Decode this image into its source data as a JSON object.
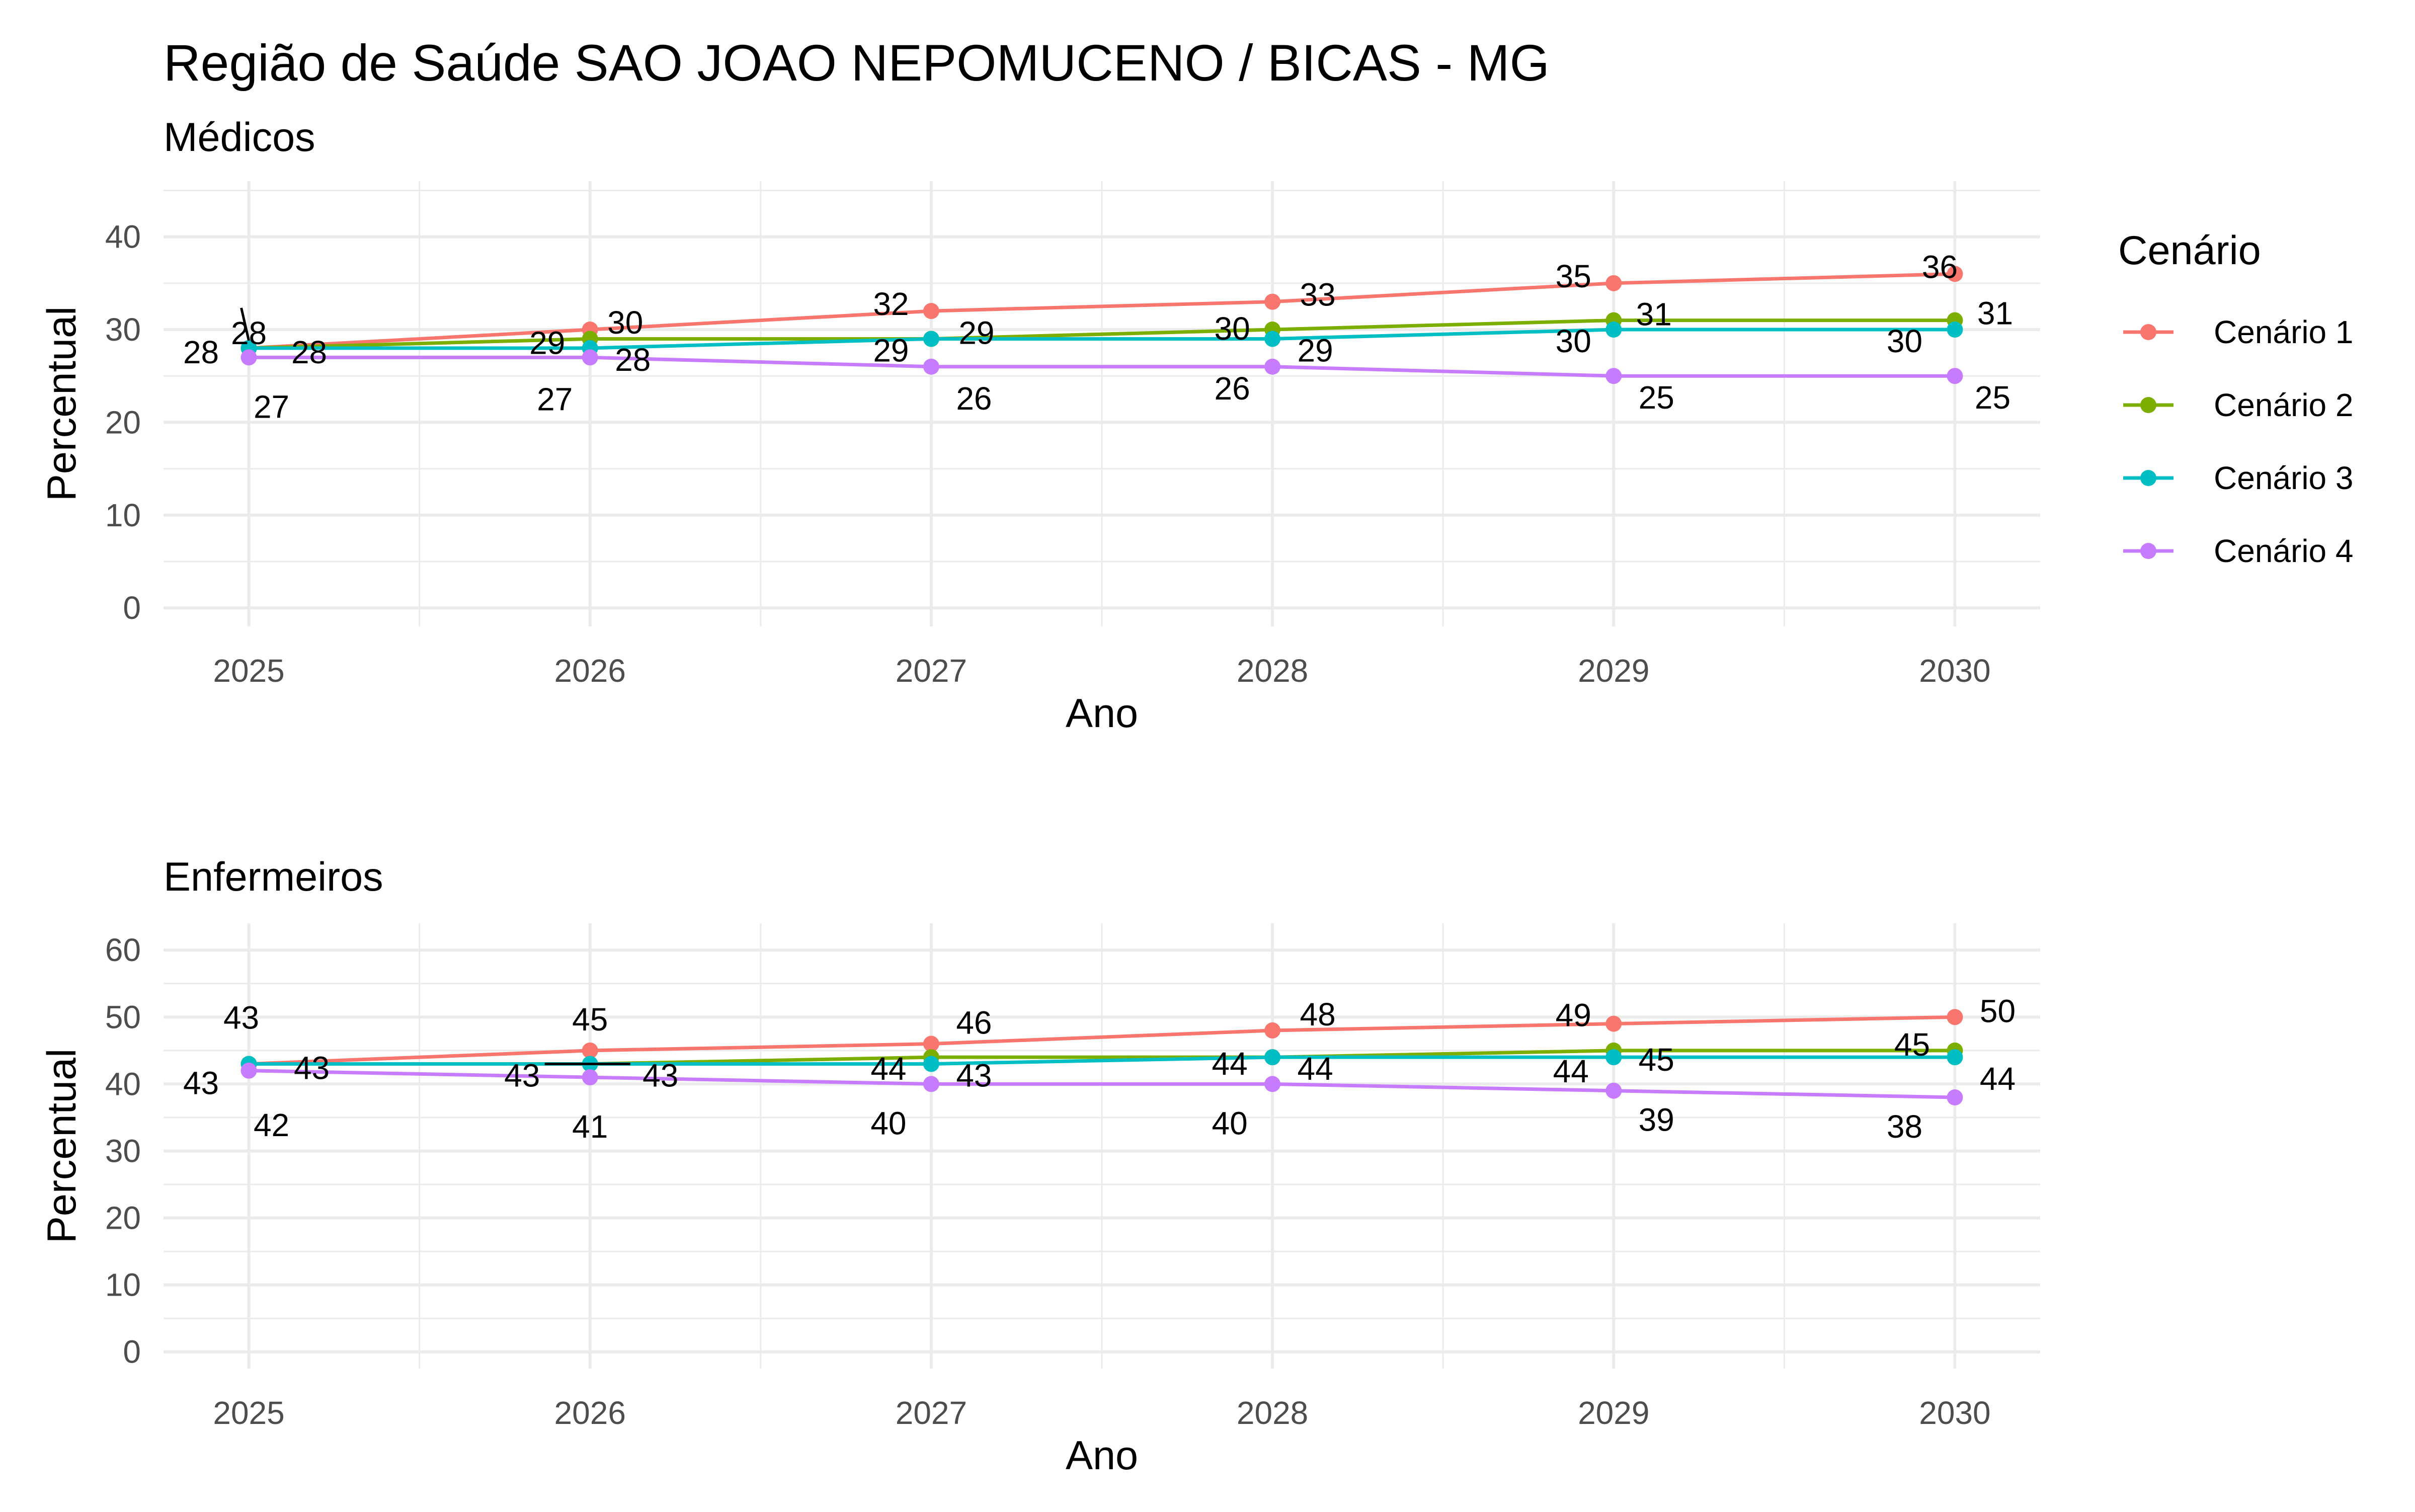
{
  "title": "Região de Saúde SAO JOAO NEPOMUCENO / BICAS - MG",
  "colors": {
    "Cenário 1": "#F8766D",
    "Cenário 2": "#7CAE00",
    "Cenário 3": "#00BFC4",
    "Cenário 4": "#C77CFF"
  },
  "legend": {
    "title": "Cenário",
    "entries": [
      "Cenário 1",
      "Cenário 2",
      "Cenário 3",
      "Cenário 4"
    ]
  },
  "chart_data": [
    {
      "type": "line",
      "subtitle": "Médicos",
      "xlabel": "Ano",
      "ylabel": "Percentual",
      "x": [
        2025,
        2026,
        2027,
        2028,
        2029,
        2030
      ],
      "xticks": [
        "2025",
        "2026",
        "2027",
        "2028",
        "2029",
        "2030"
      ],
      "yticks": [
        "0",
        "10",
        "20",
        "30",
        "40"
      ],
      "ylim": [
        -2,
        46
      ],
      "xlim": [
        2024.75,
        2030.25
      ],
      "grid": true,
      "legend_position": "right",
      "series": [
        {
          "name": "Cenário 1",
          "values": [
            28,
            30,
            32,
            33,
            35,
            36
          ]
        },
        {
          "name": "Cenário 2",
          "values": [
            28,
            29,
            29,
            30,
            31,
            31
          ]
        },
        {
          "name": "Cenário 3",
          "values": [
            28,
            28,
            29,
            29,
            30,
            30
          ]
        },
        {
          "name": "Cenário 4",
          "values": [
            27,
            27,
            26,
            26,
            25,
            25
          ]
        }
      ],
      "labels": [
        {
          "text": "28",
          "x": 2025,
          "y": 28
        },
        {
          "text": "30",
          "x": 2026,
          "y": 30
        },
        {
          "text": "32",
          "x": 2027,
          "y": 32
        },
        {
          "text": "33",
          "x": 2028,
          "y": 33
        },
        {
          "text": "35",
          "x": 2029,
          "y": 35
        },
        {
          "text": "36",
          "x": 2030,
          "y": 36
        },
        {
          "text": "28",
          "x": 2025,
          "y": 28
        },
        {
          "text": "29",
          "x": 2026,
          "y": 29
        },
        {
          "text": "29",
          "x": 2027,
          "y": 29
        },
        {
          "text": "30",
          "x": 2028,
          "y": 30
        },
        {
          "text": "31",
          "x": 2029,
          "y": 31
        },
        {
          "text": "31",
          "x": 2030,
          "y": 31
        },
        {
          "text": "28",
          "x": 2025,
          "y": 28
        },
        {
          "text": "28",
          "x": 2026,
          "y": 28
        },
        {
          "text": "29",
          "x": 2027,
          "y": 29
        },
        {
          "text": "29",
          "x": 2028,
          "y": 29
        },
        {
          "text": "30",
          "x": 2029,
          "y": 30
        },
        {
          "text": "30",
          "x": 2030,
          "y": 30
        },
        {
          "text": "27",
          "x": 2025,
          "y": 27
        },
        {
          "text": "27",
          "x": 2026,
          "y": 27
        },
        {
          "text": "26",
          "x": 2027,
          "y": 26
        },
        {
          "text": "26",
          "x": 2028,
          "y": 26
        },
        {
          "text": "25",
          "x": 2029,
          "y": 25
        },
        {
          "text": "25",
          "x": 2030,
          "y": 25
        }
      ]
    },
    {
      "type": "line",
      "subtitle": "Enfermeiros",
      "xlabel": "Ano",
      "ylabel": "Percentual",
      "x": [
        2025,
        2026,
        2027,
        2028,
        2029,
        2030
      ],
      "xticks": [
        "2025",
        "2026",
        "2027",
        "2028",
        "2029",
        "2030"
      ],
      "yticks": [
        "0",
        "10",
        "20",
        "30",
        "40",
        "50",
        "60"
      ],
      "ylim": [
        -2.5,
        64
      ],
      "xlim": [
        2024.75,
        2030.25
      ],
      "grid": true,
      "legend_position": "right",
      "series": [
        {
          "name": "Cenário 1",
          "values": [
            43,
            45,
            46,
            48,
            49,
            50
          ]
        },
        {
          "name": "Cenário 2",
          "values": [
            43,
            43,
            44,
            44,
            45,
            45
          ]
        },
        {
          "name": "Cenário 3",
          "values": [
            43,
            43,
            43,
            44,
            44,
            44
          ]
        },
        {
          "name": "Cenário 4",
          "values": [
            42,
            41,
            40,
            40,
            39,
            38
          ]
        }
      ],
      "labels": [
        {
          "text": "43",
          "x": 2025,
          "y": 43
        },
        {
          "text": "45",
          "x": 2026,
          "y": 45
        },
        {
          "text": "46",
          "x": 2027,
          "y": 46
        },
        {
          "text": "48",
          "x": 2028,
          "y": 48
        },
        {
          "text": "49",
          "x": 2029,
          "y": 49
        },
        {
          "text": "50",
          "x": 2030,
          "y": 50
        },
        {
          "text": "43",
          "x": 2025,
          "y": 43
        },
        {
          "text": "43",
          "x": 2026,
          "y": 43
        },
        {
          "text": "44",
          "x": 2027,
          "y": 44
        },
        {
          "text": "44",
          "x": 2028,
          "y": 44
        },
        {
          "text": "45",
          "x": 2029,
          "y": 45
        },
        {
          "text": "45",
          "x": 2030,
          "y": 45
        },
        {
          "text": "43",
          "x": 2025,
          "y": 43
        },
        {
          "text": "43",
          "x": 2026,
          "y": 43
        },
        {
          "text": "43",
          "x": 2027,
          "y": 43
        },
        {
          "text": "44",
          "x": 2028,
          "y": 44
        },
        {
          "text": "44",
          "x": 2029,
          "y": 44
        },
        {
          "text": "44",
          "x": 2030,
          "y": 44
        },
        {
          "text": "42",
          "x": 2025,
          "y": 42
        },
        {
          "text": "41",
          "x": 2026,
          "y": 41
        },
        {
          "text": "40",
          "x": 2027,
          "y": 40
        },
        {
          "text": "40",
          "x": 2028,
          "y": 40
        },
        {
          "text": "39",
          "x": 2029,
          "y": 39
        },
        {
          "text": "38",
          "x": 2030,
          "y": 38
        }
      ]
    }
  ]
}
